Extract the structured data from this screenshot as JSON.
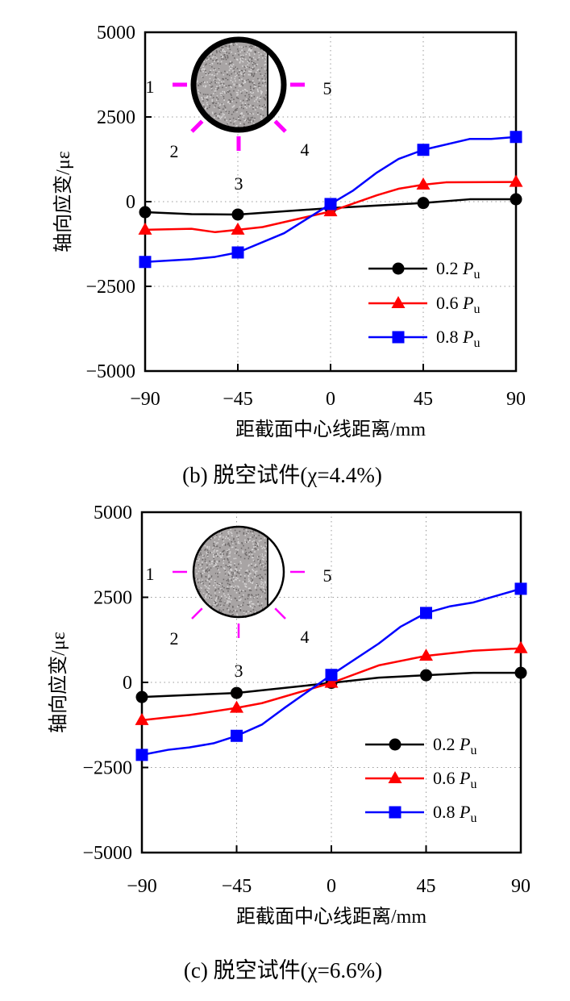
{
  "chart_data": [
    {
      "type": "line",
      "title": "",
      "caption": "(b)  脱空试件(χ=4.4%)",
      "xlabel": "距截面中心线距离/mm",
      "ylabel": "轴向应变/με",
      "xlim": [
        -90,
        90
      ],
      "ylim": [
        -5000,
        5000
      ],
      "xticks": [
        -90,
        -45,
        0,
        45,
        90
      ],
      "xtick_labels": [
        "−90",
        "−45",
        "0",
        "45",
        "90"
      ],
      "yticks": [
        5000,
        2500,
        0,
        -2500,
        -5000
      ],
      "ytick_labels": [
        "5000",
        "2500",
        "0",
        "−2500",
        "−5000"
      ],
      "grid": true,
      "legend_position": "bottom-right",
      "inset": {
        "type": "section-diagram",
        "gauge_labels": [
          "1",
          "2",
          "3",
          "4",
          "5"
        ],
        "thick_tube": true
      },
      "series": [
        {
          "name": "0.2 P",
          "subscript": "u",
          "color": "#000000",
          "marker": "circle",
          "x": [
            -90,
            -67.5,
            -45,
            0,
            45,
            67.5,
            90
          ],
          "y": [
            -310,
            -370,
            -380,
            -190,
            -40,
            70,
            70
          ],
          "marked_x": [
            -90,
            -45,
            0,
            45,
            90
          ]
        },
        {
          "name": "0.6 P",
          "subscript": "u",
          "color": "#ff0000",
          "marker": "triangle",
          "x": [
            -90,
            -67.5,
            -56,
            -45,
            -33,
            0,
            22.5,
            33,
            45,
            56,
            90
          ],
          "y": [
            -830,
            -800,
            -900,
            -830,
            -750,
            -290,
            190,
            380,
            500,
            570,
            580
          ],
          "marked_x": [
            -90,
            -45,
            0,
            45,
            90
          ]
        },
        {
          "name": "0.8 P",
          "subscript": "u",
          "color": "#0000ff",
          "marker": "square",
          "x": [
            -90,
            -67.5,
            -56,
            -45,
            -22.5,
            0,
            11,
            22.5,
            33,
            45,
            67.5,
            78,
            90
          ],
          "y": [
            -1780,
            -1700,
            -1630,
            -1500,
            -930,
            -70,
            330,
            860,
            1260,
            1530,
            1850,
            1850,
            1910
          ],
          "marked_x": [
            -90,
            -45,
            0,
            45,
            90
          ]
        }
      ]
    },
    {
      "type": "line",
      "title": "",
      "caption": "(c)  脱空试件(χ=6.6%)",
      "xlabel": "距截面中心线距离/mm",
      "ylabel": "轴向应变/με",
      "xlim": [
        -90,
        90
      ],
      "ylim": [
        -5000,
        5000
      ],
      "xticks": [
        -90,
        -45,
        0,
        45,
        90
      ],
      "xtick_labels": [
        "−90",
        "−45",
        "0",
        "45",
        "90"
      ],
      "yticks": [
        5000,
        2500,
        0,
        -2500,
        -5000
      ],
      "ytick_labels": [
        "5000",
        "2500",
        "0",
        "−2500",
        "−5000"
      ],
      "grid": true,
      "legend_position": "bottom-right",
      "inset": {
        "type": "section-diagram",
        "gauge_labels": [
          "1",
          "2",
          "3",
          "4",
          "5"
        ],
        "thick_tube": false
      },
      "series": [
        {
          "name": "0.2 P",
          "subscript": "u",
          "color": "#000000",
          "marker": "circle",
          "x": [
            -90,
            -45,
            0,
            22.5,
            45,
            67.5,
            90
          ],
          "y": [
            -430,
            -310,
            -15,
            140,
            210,
            280,
            280
          ],
          "marked_x": [
            -90,
            -45,
            0,
            45,
            90
          ]
        },
        {
          "name": "0.6 P",
          "subscript": "u",
          "color": "#ff0000",
          "marker": "triangle",
          "x": [
            -90,
            -67.5,
            -45,
            -33,
            0,
            22.5,
            45,
            67.5,
            90
          ],
          "y": [
            -1110,
            -960,
            -750,
            -610,
            -15,
            500,
            780,
            930,
            1000
          ],
          "marked_x": [
            -90,
            -45,
            0,
            45,
            90
          ]
        },
        {
          "name": "0.8 P",
          "subscript": "u",
          "color": "#0000ff",
          "marker": "square",
          "x": [
            -90,
            -77.5,
            -67.5,
            -56,
            -45,
            -33,
            -22.5,
            0,
            22.5,
            33,
            45,
            56,
            67.5,
            90
          ],
          "y": [
            -2130,
            -1980,
            -1910,
            -1790,
            -1570,
            -1240,
            -760,
            220,
            1140,
            1640,
            2040,
            2230,
            2350,
            2750
          ],
          "marked_x": [
            -90,
            -45,
            0,
            45,
            90
          ]
        }
      ]
    }
  ],
  "colors": {
    "gauge": "#ff00ff",
    "grid": "#999999",
    "concrete": "#a8a4a4"
  }
}
